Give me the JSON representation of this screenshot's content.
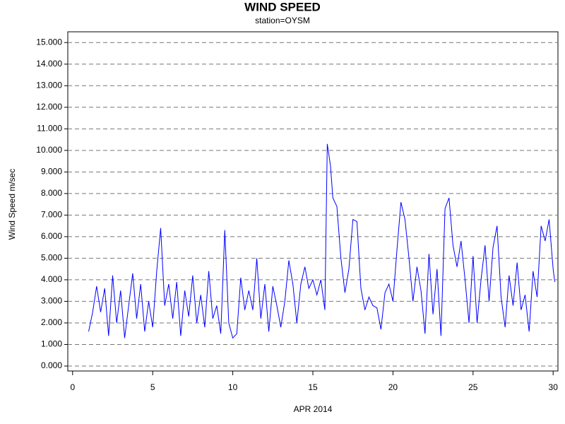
{
  "chart_data": {
    "type": "line",
    "title": "WIND SPEED",
    "subtitle": "station=OYSM",
    "x_label": "APR 2014",
    "y_label": "Wind Speed m/sec",
    "x": [
      1.0,
      1.25,
      1.5,
      1.75,
      2.0,
      2.25,
      2.5,
      2.75,
      3.0,
      3.25,
      3.5,
      3.75,
      4.0,
      4.25,
      4.5,
      4.75,
      5.0,
      5.25,
      5.5,
      5.75,
      6.0,
      6.25,
      6.5,
      6.75,
      7.0,
      7.25,
      7.5,
      7.75,
      8.0,
      8.25,
      8.5,
      8.75,
      9.0,
      9.25,
      9.5,
      9.75,
      10.0,
      10.25,
      10.5,
      10.75,
      11.0,
      11.25,
      11.5,
      11.75,
      12.0,
      12.25,
      12.5,
      12.75,
      13.0,
      13.25,
      13.5,
      13.75,
      14.0,
      14.25,
      14.5,
      14.75,
      15.0,
      15.25,
      15.5,
      15.75,
      15.9,
      16.1,
      16.25,
      16.5,
      16.75,
      17.0,
      17.25,
      17.5,
      17.75,
      18.0,
      18.25,
      18.5,
      18.75,
      19.0,
      19.25,
      19.5,
      19.75,
      20.0,
      20.25,
      20.5,
      20.75,
      21.0,
      21.25,
      21.5,
      21.75,
      22.0,
      22.25,
      22.5,
      22.75,
      23.0,
      23.25,
      23.5,
      23.75,
      24.0,
      24.25,
      24.5,
      24.75,
      25.0,
      25.25,
      25.5,
      25.75,
      26.0,
      26.25,
      26.5,
      26.75,
      27.0,
      27.25,
      27.5,
      27.75,
      28.0,
      28.25,
      28.5,
      28.75,
      29.0,
      29.25,
      29.5,
      29.75,
      30.0,
      30.1
    ],
    "series": [
      {
        "name": "Wind Speed",
        "color": "#0000ff",
        "values": [
          1.6,
          2.5,
          3.7,
          2.5,
          3.6,
          1.4,
          4.2,
          2.0,
          3.5,
          1.3,
          2.8,
          4.3,
          2.2,
          3.8,
          1.6,
          3.0,
          1.8,
          4.4,
          6.4,
          2.8,
          3.8,
          2.2,
          3.9,
          1.4,
          3.5,
          2.3,
          4.2,
          2.0,
          3.3,
          1.8,
          4.4,
          2.2,
          2.8,
          1.5,
          6.3,
          2.0,
          1.3,
          1.5,
          4.1,
          2.6,
          3.5,
          2.6,
          5.0,
          2.2,
          3.8,
          1.6,
          3.7,
          2.8,
          1.8,
          3.0,
          4.9,
          3.8,
          2.0,
          3.8,
          4.6,
          3.6,
          4.0,
          3.3,
          4.0,
          2.6,
          10.3,
          9.3,
          7.8,
          7.4,
          5.0,
          3.4,
          4.5,
          6.8,
          6.7,
          3.6,
          2.6,
          3.2,
          2.8,
          2.7,
          1.7,
          3.4,
          3.8,
          3.0,
          5.4,
          7.6,
          6.8,
          5.0,
          3.0,
          4.6,
          3.5,
          1.5,
          5.2,
          2.4,
          4.5,
          1.4,
          7.3,
          7.8,
          5.6,
          4.6,
          5.8,
          4.0,
          2.0,
          5.1,
          2.0,
          4.0,
          5.6,
          3.0,
          5.5,
          6.5,
          3.2,
          1.8,
          4.2,
          2.8,
          4.8,
          2.6,
          3.3,
          1.6,
          4.4,
          3.2,
          6.5,
          5.8,
          6.8,
          4.5,
          3.9
        ]
      }
    ],
    "xlim": [
      -0.3,
      30.3
    ],
    "xticks": [
      0,
      5,
      10,
      15,
      20,
      25,
      30
    ],
    "ylim": [
      -0.23,
      15.5
    ],
    "yticks": [
      {
        "value": 0,
        "label": "0.000"
      },
      {
        "value": 1,
        "label": "1.000"
      },
      {
        "value": 2,
        "label": "2.000"
      },
      {
        "value": 3,
        "label": "3.000"
      },
      {
        "value": 4,
        "label": "4.000"
      },
      {
        "value": 5,
        "label": "5.000"
      },
      {
        "value": 6,
        "label": "6.000"
      },
      {
        "value": 7,
        "label": "7.000"
      },
      {
        "value": 8,
        "label": "8.000"
      },
      {
        "value": 9,
        "label": "9.000"
      },
      {
        "value": 10,
        "label": "10.000"
      },
      {
        "value": 11,
        "label": "11.000"
      },
      {
        "value": 12,
        "label": "12.000"
      },
      {
        "value": 13,
        "label": "13.000"
      },
      {
        "value": 14,
        "label": "14.000"
      },
      {
        "value": 15,
        "label": "15.000"
      }
    ],
    "grid": true
  }
}
